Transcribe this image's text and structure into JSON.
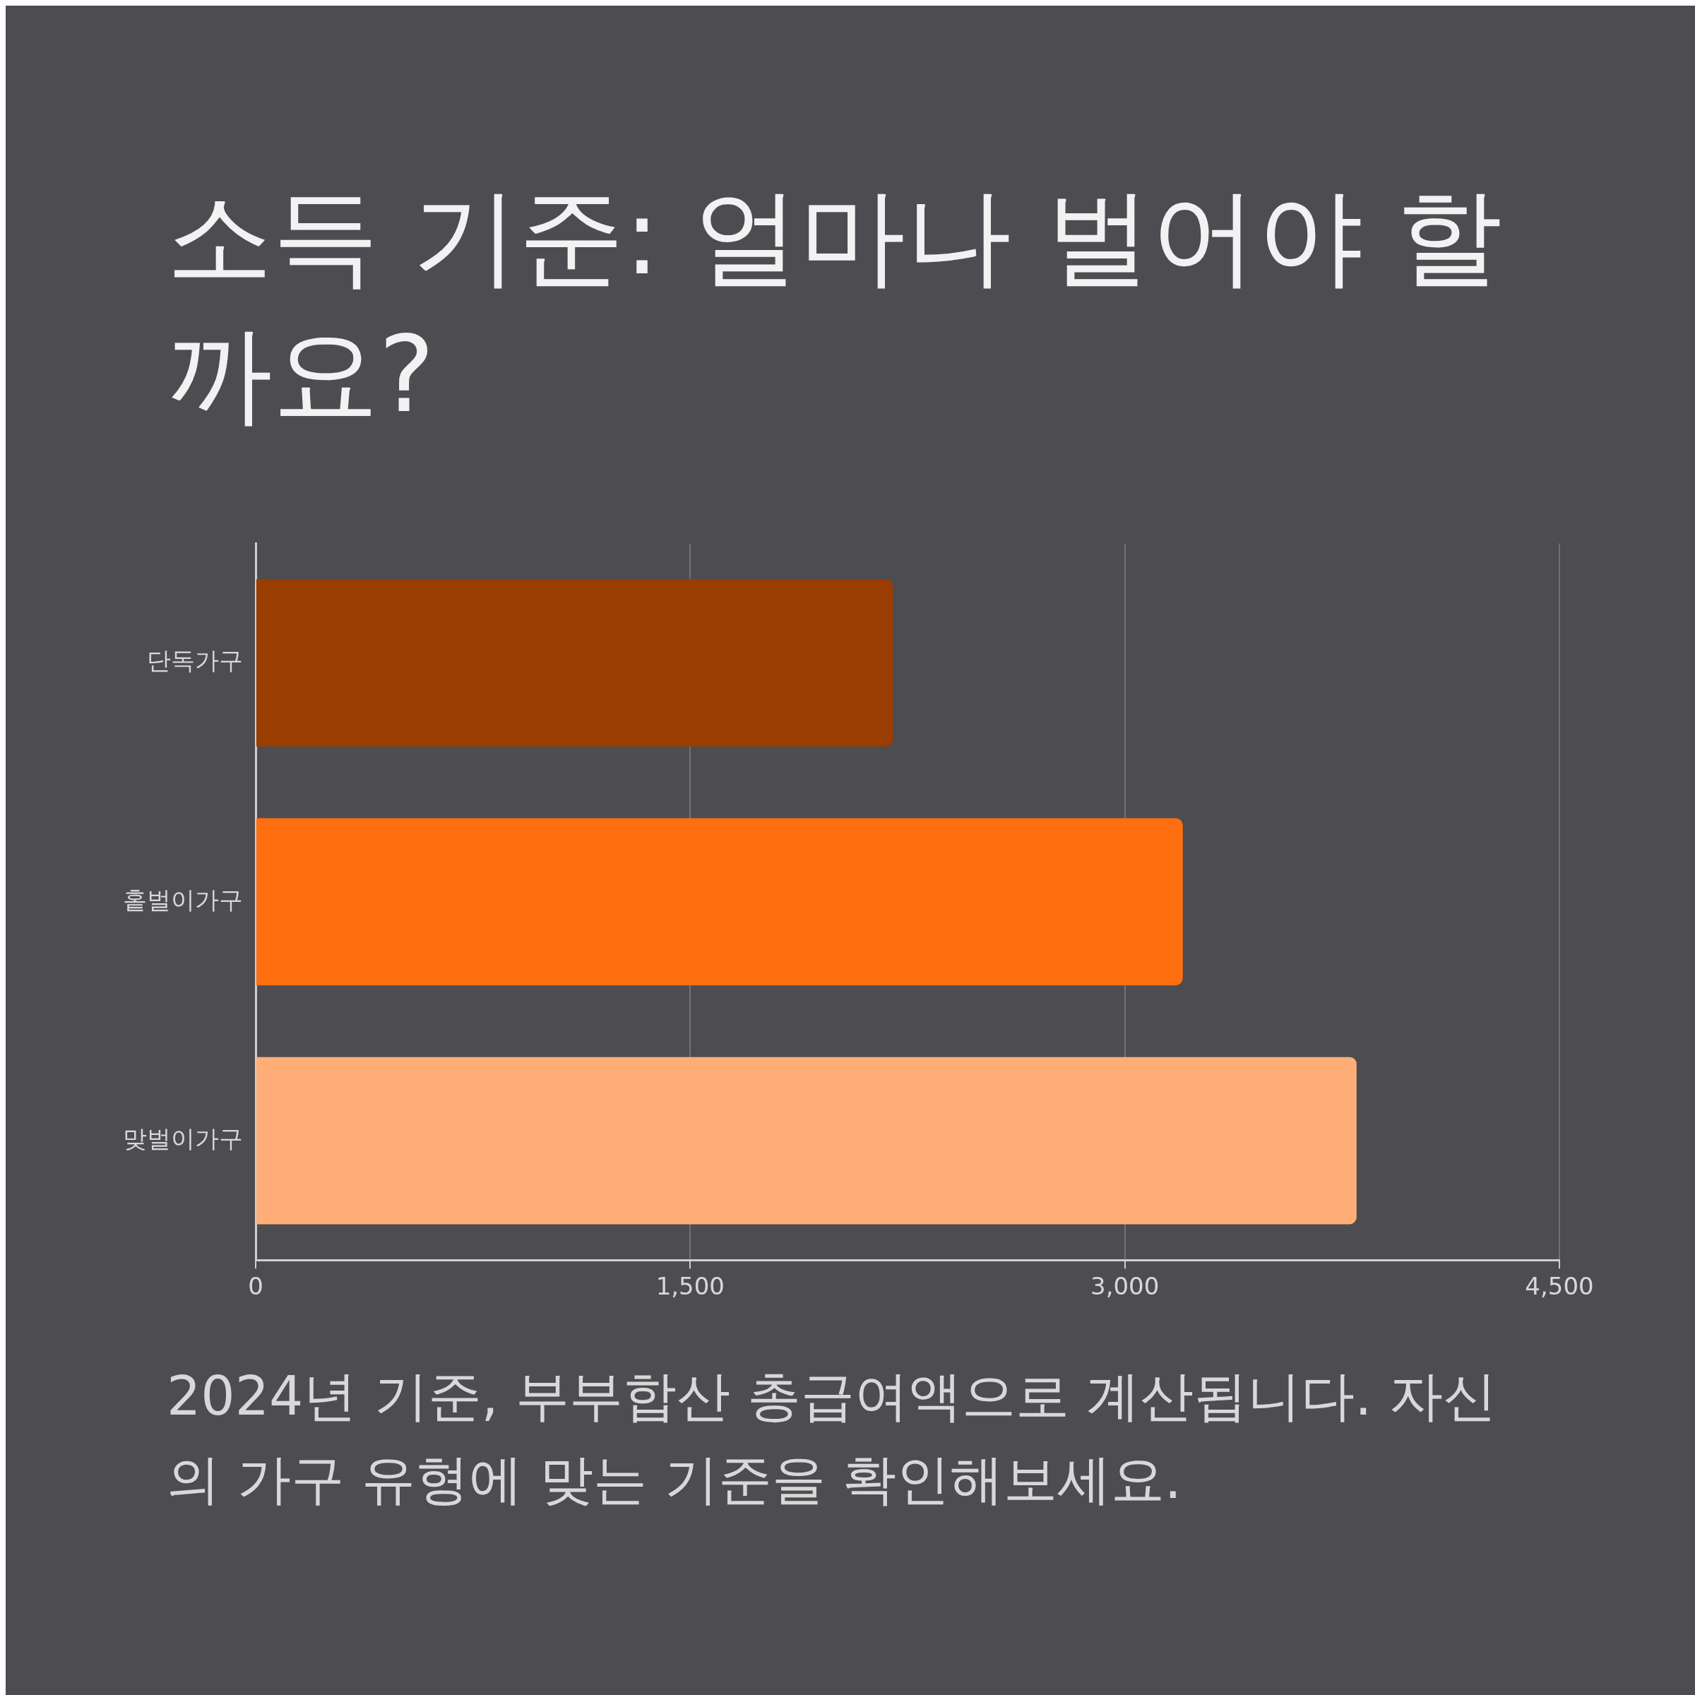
{
  "chart_data": {
    "type": "bar",
    "orientation": "horizontal",
    "title": "소득 기준: 얼마나 벌어야 할까요?",
    "categories": [
      "단독가구",
      "홑벌이가구",
      "맞벌이가구"
    ],
    "values": [
      2200,
      3200,
      3800
    ],
    "colors": [
      "#993d00",
      "#ff6f0f",
      "#ffae78"
    ],
    "xlim": [
      0,
      4500
    ],
    "xticks": [
      0,
      {
        "value": 1500,
        "label": "1,500"
      },
      {
        "value": 3000,
        "label": "3,000"
      },
      {
        "value": 4500,
        "label": "4,500"
      }
    ],
    "grid": "x",
    "legend": false,
    "annotations": [
      "2024년 기준, 부부합산 총급여액으로 계산됩니다. 자신의 가구 유형에 맞는 기준을 확인해보세요."
    ]
  }
}
